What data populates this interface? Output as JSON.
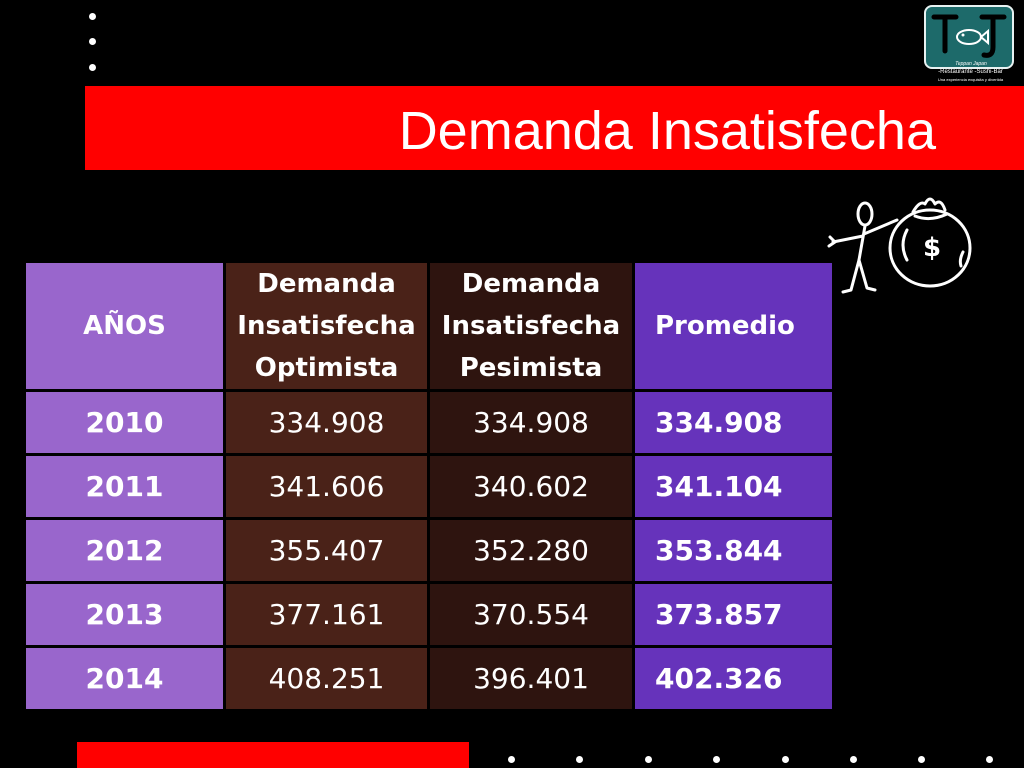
{
  "title": "Demanda Insatisfecha",
  "logo": {
    "subtitle": "-Restaurante -Sushi-Bar",
    "script": "Teppan Japan",
    "tagline": "Una experiencia exquisita y divertida"
  },
  "table": {
    "headers": {
      "year": "AÑOS",
      "optimista": [
        "Demanda",
        "Insatisfecha",
        "Optimista"
      ],
      "pesimista": [
        "Demanda",
        "Insatisfecha",
        "Pesimista"
      ],
      "promedio": "Promedio"
    },
    "rows": [
      {
        "year": "2010",
        "optimista": "334.908",
        "pesimista": "334.908",
        "promedio": "334.908"
      },
      {
        "year": "2011",
        "optimista": "341.606",
        "pesimista": "340.602",
        "promedio": "341.104"
      },
      {
        "year": "2012",
        "optimista": "355.407",
        "pesimista": "352.280",
        "promedio": "353.844"
      },
      {
        "year": "2013",
        "optimista": "377.161",
        "pesimista": "370.554",
        "promedio": "373.857"
      },
      {
        "year": "2014",
        "optimista": "408.251",
        "pesimista": "396.401",
        "promedio": "402.326"
      }
    ]
  },
  "colors": {
    "title_bar": "#ff0000",
    "year_column": "#9966cc",
    "optimista_column": "#4a2218",
    "pesimista_column": "#2e140f",
    "promedio_column": "#6633bb"
  },
  "icons": [
    "restaurant-logo",
    "stick-figure-money-bag-icon"
  ]
}
